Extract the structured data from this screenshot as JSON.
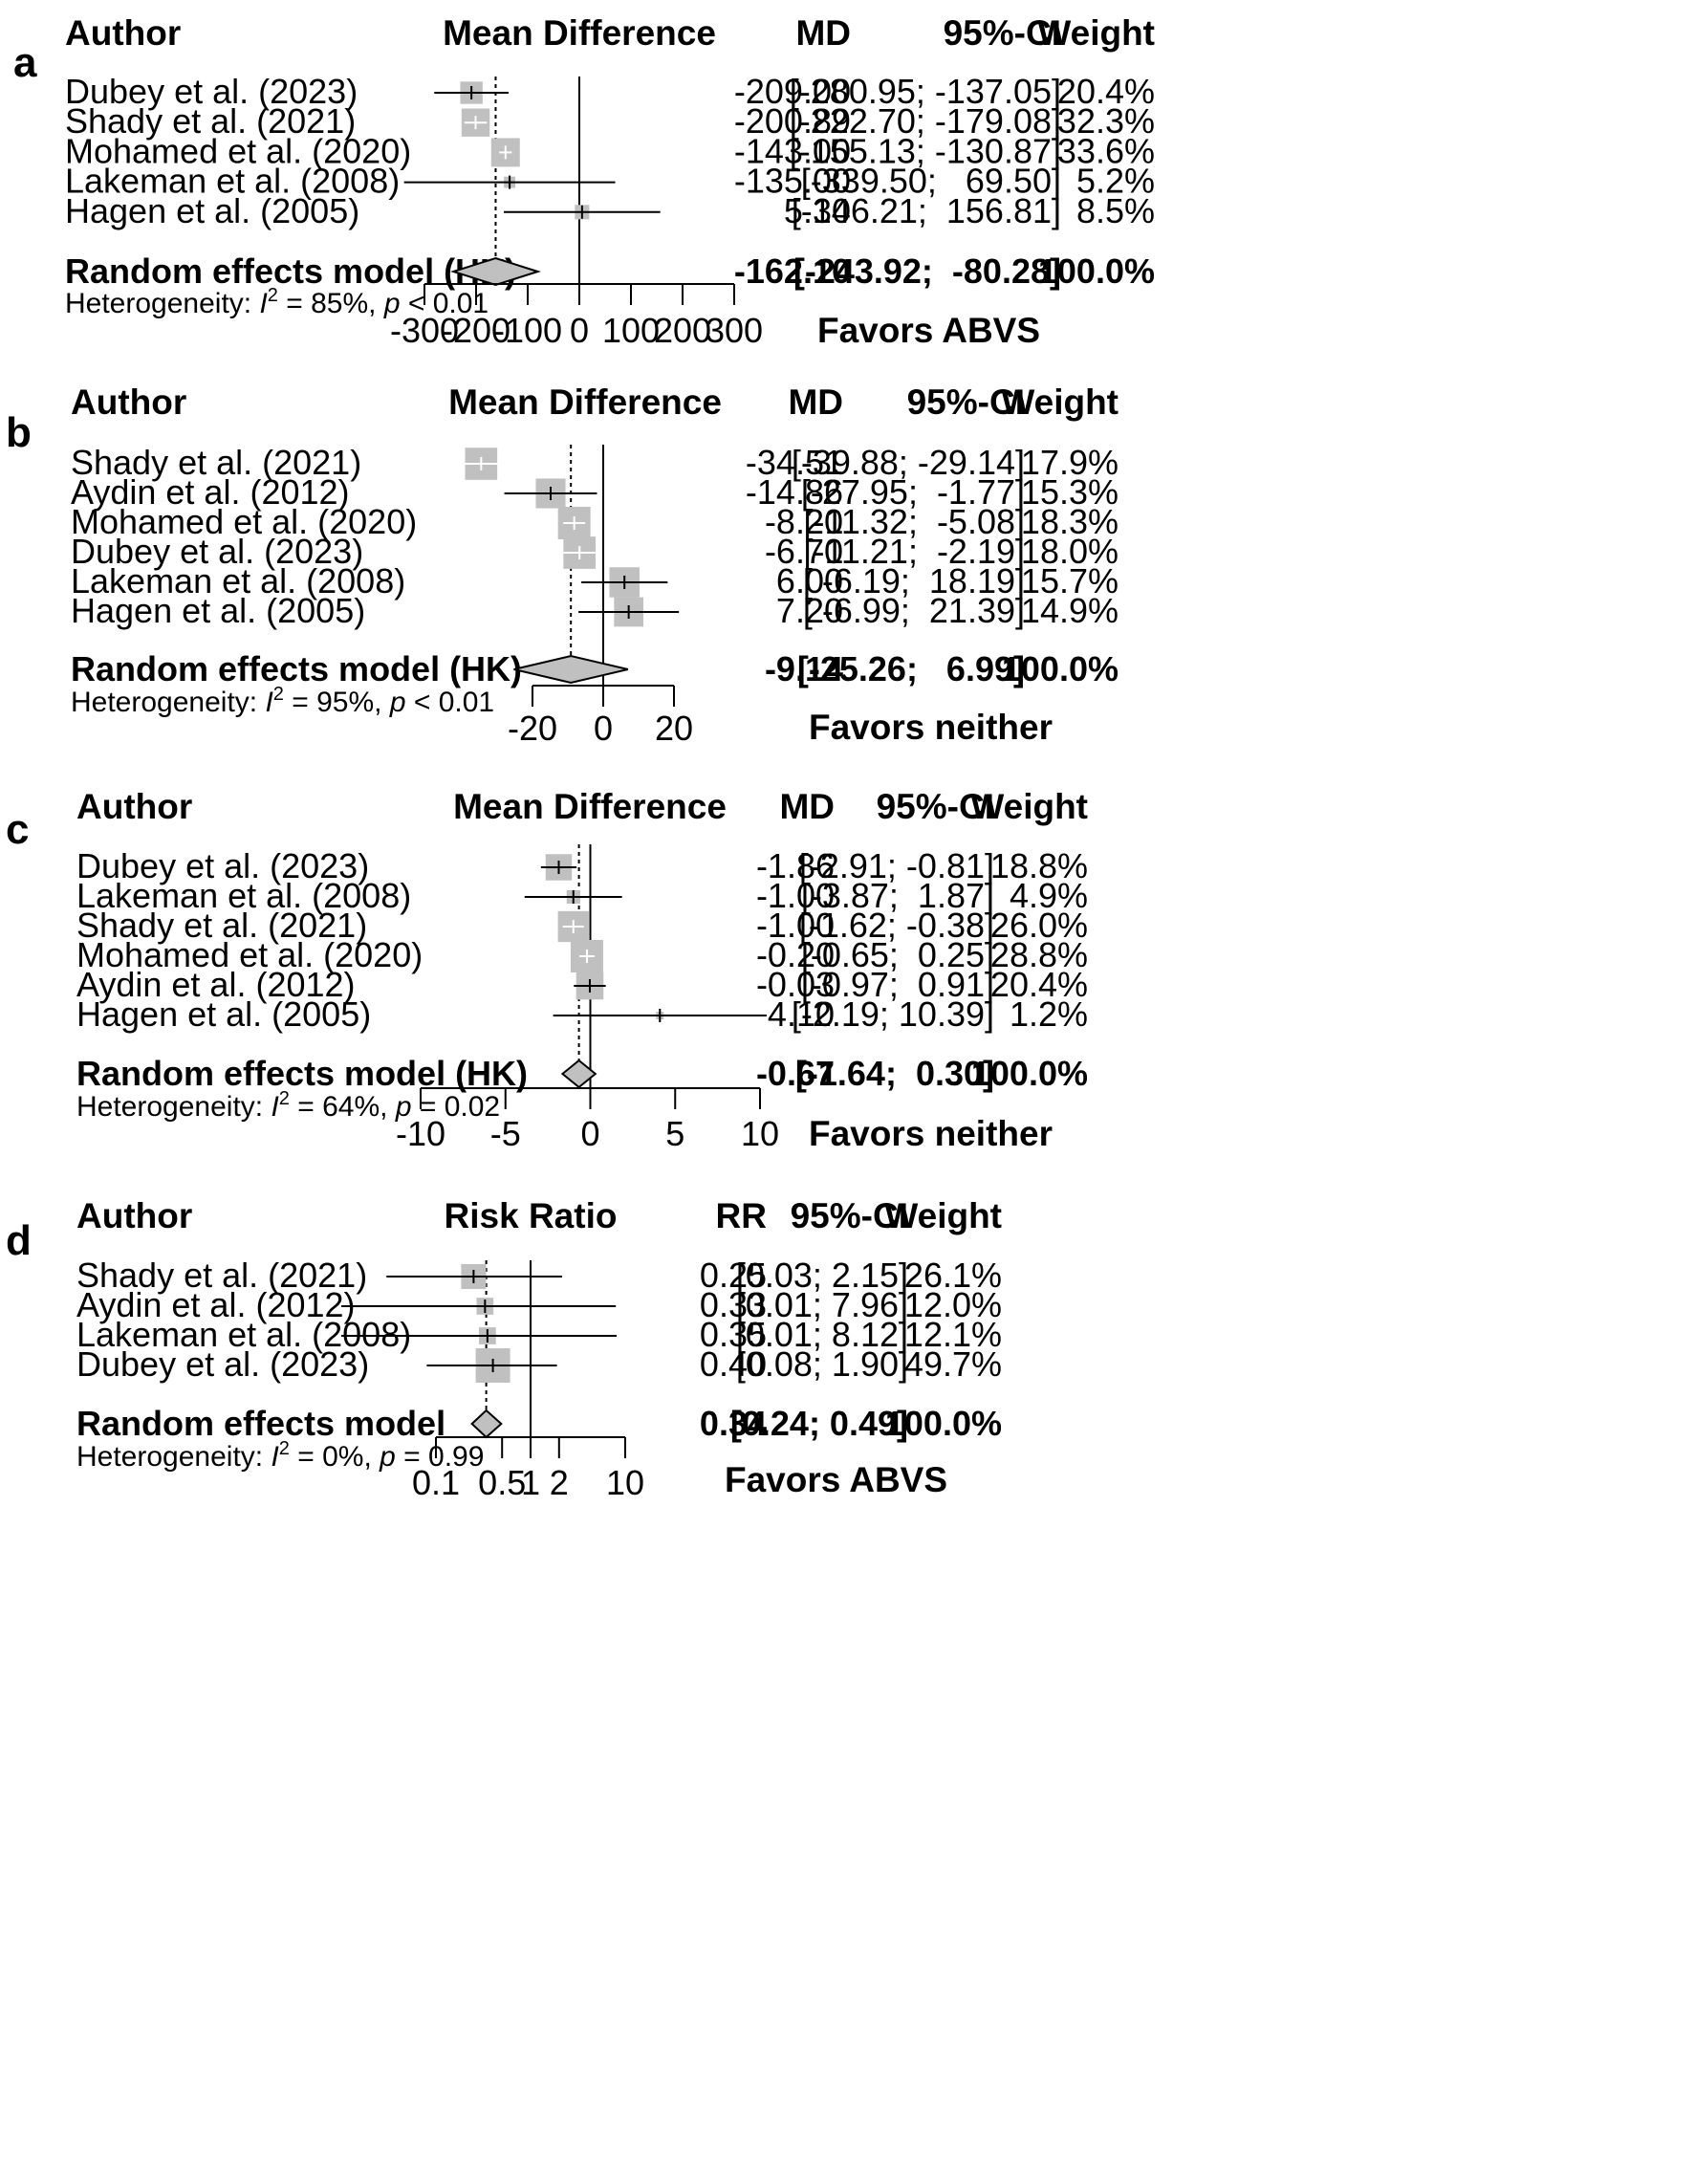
{
  "chart_data": [
    {
      "panel": "a",
      "type": "forest",
      "scale": "linear",
      "columns": {
        "author": "Author",
        "plot": "Mean Difference",
        "effect": "MD",
        "ci": "95%-CI",
        "weight": "Weight"
      },
      "studies": [
        {
          "author": "Dubey et al. (2023)",
          "effect": -209.0,
          "lower": -280.95,
          "upper": -137.05,
          "weight": 20.4,
          "effect_text": "-209.00",
          "ci_text": "[-280.95; -137.05]",
          "weight_text": "20.4%"
        },
        {
          "author": "Shady et al. (2021)",
          "effect": -200.89,
          "lower": -222.7,
          "upper": -179.08,
          "weight": 32.3,
          "effect_text": "-200.89",
          "ci_text": "[-222.70; -179.08]",
          "weight_text": "32.3%"
        },
        {
          "author": "Mohamed et al. (2020)",
          "effect": -143.0,
          "lower": -155.13,
          "upper": -130.87,
          "weight": 33.6,
          "effect_text": "-143.00",
          "ci_text": "[-155.13; -130.87]",
          "weight_text": "33.6%"
        },
        {
          "author": "Lakeman et al. (2008)",
          "effect": -135.0,
          "lower": -339.5,
          "upper": 69.5,
          "weight": 5.2,
          "effect_text": "-135.00",
          "ci_text": "[-339.50;   69.50]",
          "weight_text": "5.2%"
        },
        {
          "author": "Hagen et al. (2005)",
          "effect": 5.3,
          "lower": -146.21,
          "upper": 156.81,
          "weight": 8.5,
          "effect_text": "5.30",
          "ci_text": "[-146.21;  156.81]",
          "weight_text": "8.5%"
        }
      ],
      "summary": {
        "label": "Random effects model (HK)",
        "effect": -162.1,
        "lower": -243.92,
        "upper": -80.28,
        "effect_text": "-162.10",
        "ci_text": "[-243.92;  -80.28]",
        "weight_text": "100.0%"
      },
      "heterogeneity": {
        "prefix": "Heterogeneity: ",
        "i2_symbol": "I",
        "i2_sup": "2",
        "i2_value": " = 85%, ",
        "p_symbol": "p",
        "p_value": " < 0.01"
      },
      "xticks": [
        -300,
        -200,
        -100,
        0,
        100,
        200,
        300
      ],
      "xtick_labels": [
        "-300",
        "-200",
        "-100",
        "0",
        "100",
        "200",
        "300"
      ],
      "xlim": [
        -300,
        300
      ],
      "favors": "Favors ABVS"
    },
    {
      "panel": "b",
      "type": "forest",
      "scale": "linear",
      "columns": {
        "author": "Author",
        "plot": "Mean Difference",
        "effect": "MD",
        "ci": "95%-CI",
        "weight": "Weight"
      },
      "studies": [
        {
          "author": "Shady et al. (2021)",
          "effect": -34.51,
          "lower": -39.88,
          "upper": -29.14,
          "weight": 17.9,
          "effect_text": "-34.51",
          "ci_text": "[-39.88; -29.14]",
          "weight_text": "17.9%"
        },
        {
          "author": "Aydin et al. (2012)",
          "effect": -14.86,
          "lower": -27.95,
          "upper": -1.77,
          "weight": 15.3,
          "effect_text": "-14.86",
          "ci_text": "[-27.95;  -1.77]",
          "weight_text": "15.3%"
        },
        {
          "author": "Mohamed et al. (2020)",
          "effect": -8.2,
          "lower": -11.32,
          "upper": -5.08,
          "weight": 18.3,
          "effect_text": "-8.20",
          "ci_text": "[-11.32;  -5.08]",
          "weight_text": "18.3%"
        },
        {
          "author": "Dubey et al. (2023)",
          "effect": -6.7,
          "lower": -11.21,
          "upper": -2.19,
          "weight": 18.0,
          "effect_text": "-6.70",
          "ci_text": "[-11.21;  -2.19]",
          "weight_text": "18.0%"
        },
        {
          "author": "Lakeman et al. (2008)",
          "effect": 6.0,
          "lower": -6.19,
          "upper": 18.19,
          "weight": 15.7,
          "effect_text": "6.00",
          "ci_text": "[ -6.19;  18.19]",
          "weight_text": "15.7%"
        },
        {
          "author": "Hagen et al. (2005)",
          "effect": 7.2,
          "lower": -6.99,
          "upper": 21.39,
          "weight": 14.9,
          "effect_text": "7.20",
          "ci_text": "[ -6.99;  21.39]",
          "weight_text": "14.9%"
        }
      ],
      "summary": {
        "label": "Random effects model (HK)",
        "effect": -9.14,
        "lower": -25.26,
        "upper": 6.99,
        "effect_text": "-9.14",
        "ci_text": "[-25.26;   6.99]",
        "weight_text": "100.0%"
      },
      "heterogeneity": {
        "prefix": "Heterogeneity: ",
        "i2_symbol": "I",
        "i2_sup": "2",
        "i2_value": " = 95%, ",
        "p_symbol": "p",
        "p_value": " < 0.01"
      },
      "xticks": [
        -20,
        0,
        20
      ],
      "xtick_labels": [
        "-20",
        "0",
        "20"
      ],
      "xlim": [
        -20,
        20
      ],
      "favors": "Favors neither"
    },
    {
      "panel": "c",
      "type": "forest",
      "scale": "linear",
      "columns": {
        "author": "Author",
        "plot": "Mean Difference",
        "effect": "MD",
        "ci": "95%-CI",
        "weight": "Weight"
      },
      "studies": [
        {
          "author": "Dubey et al. (2023)",
          "effect": -1.86,
          "lower": -2.91,
          "upper": -0.81,
          "weight": 18.8,
          "effect_text": "-1.86",
          "ci_text": "[-2.91; -0.81]",
          "weight_text": "18.8%"
        },
        {
          "author": "Lakeman et al. (2008)",
          "effect": -1.0,
          "lower": -3.87,
          "upper": 1.87,
          "weight": 4.9,
          "effect_text": "-1.00",
          "ci_text": "[-3.87;  1.87]",
          "weight_text": "4.9%"
        },
        {
          "author": "Shady et al. (2021)",
          "effect": -1.0,
          "lower": -1.62,
          "upper": -0.38,
          "weight": 26.0,
          "effect_text": "-1.00",
          "ci_text": "[-1.62; -0.38]",
          "weight_text": "26.0%"
        },
        {
          "author": "Mohamed et al. (2020)",
          "effect": -0.2,
          "lower": -0.65,
          "upper": 0.25,
          "weight": 28.8,
          "effect_text": "-0.20",
          "ci_text": "[-0.65;  0.25]",
          "weight_text": "28.8%"
        },
        {
          "author": "Aydin et al. (2012)",
          "effect": -0.03,
          "lower": -0.97,
          "upper": 0.91,
          "weight": 20.4,
          "effect_text": "-0.03",
          "ci_text": "[-0.97;  0.91]",
          "weight_text": "20.4%"
        },
        {
          "author": "Hagen et al. (2005)",
          "effect": 4.1,
          "lower": -2.19,
          "upper": 10.39,
          "weight": 1.2,
          "effect_text": "4.10",
          "ci_text": "[-2.19; 10.39]",
          "weight_text": "1.2%"
        }
      ],
      "summary": {
        "label": "Random effects model (HK)",
        "effect": -0.67,
        "lower": -1.64,
        "upper": 0.3,
        "effect_text": "-0.67",
        "ci_text": "[-1.64;  0.30]",
        "weight_text": "100.0%"
      },
      "heterogeneity": {
        "prefix": "Heterogeneity: ",
        "i2_symbol": "I",
        "i2_sup": "2",
        "i2_value": " = 64%, ",
        "p_symbol": "p",
        "p_value": " = 0.02"
      },
      "xticks": [
        -10,
        -5,
        0,
        5,
        10
      ],
      "xtick_labels": [
        "-10",
        "-5",
        "0",
        "5",
        "10"
      ],
      "xlim": [
        -10,
        10
      ],
      "favors": "Favors neither"
    },
    {
      "panel": "d",
      "type": "forest",
      "scale": "log",
      "columns": {
        "author": "Author",
        "plot": "Risk Ratio",
        "effect": "RR",
        "ci": "95%-CI",
        "weight": "Weight"
      },
      "studies": [
        {
          "author": "Shady et al. (2021)",
          "effect": 0.25,
          "lower": 0.03,
          "upper": 2.15,
          "weight": 26.1,
          "effect_text": "0.25",
          "ci_text": "[0.03; 2.15]",
          "weight_text": "26.1%"
        },
        {
          "author": "Aydin et al. (2012)",
          "effect": 0.33,
          "lower": 0.01,
          "upper": 7.96,
          "weight": 12.0,
          "effect_text": "0.33",
          "ci_text": "[0.01; 7.96]",
          "weight_text": "12.0%"
        },
        {
          "author": "Lakeman et al. (2008)",
          "effect": 0.35,
          "lower": 0.01,
          "upper": 8.12,
          "weight": 12.1,
          "effect_text": "0.35",
          "ci_text": "[0.01; 8.12]",
          "weight_text": "12.1%"
        },
        {
          "author": "Dubey et al. (2023)",
          "effect": 0.4,
          "lower": 0.08,
          "upper": 1.9,
          "weight": 49.7,
          "effect_text": "0.40",
          "ci_text": "[0.08; 1.90]",
          "weight_text": "49.7%"
        }
      ],
      "summary": {
        "label": "Random effects model",
        "effect": 0.34,
        "lower": 0.24,
        "upper": 0.49,
        "effect_text": "0.34",
        "ci_text": "[0.24; 0.49]",
        "weight_text": "100.0%"
      },
      "heterogeneity": {
        "prefix": "Heterogeneity: ",
        "i2_symbol": "I",
        "i2_sup": "2",
        "i2_value": " = 0%, ",
        "p_symbol": "p",
        "p_value": " = 0.99"
      },
      "xticks": [
        0.1,
        0.5,
        1,
        2,
        10
      ],
      "xtick_labels": [
        "0.1",
        "0.5",
        "1",
        "2",
        "10"
      ],
      "xlim": [
        0.1,
        10
      ],
      "favors": "Favors ABVS"
    }
  ],
  "colors": {
    "square": "#c0c0c0",
    "diamond": "#c0c0c0",
    "line": "#000000",
    "text": "#000000",
    "background": "#ffffff"
  }
}
